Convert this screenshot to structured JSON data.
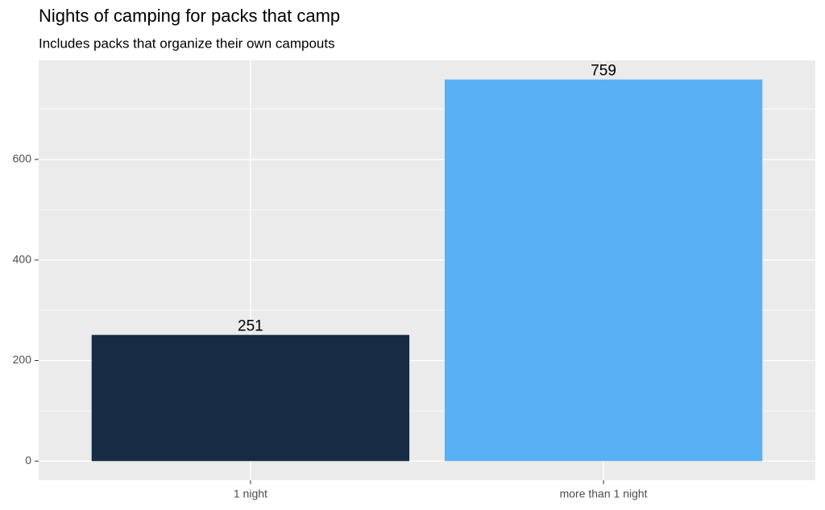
{
  "chart_data": {
    "type": "bar",
    "title": "Nights of camping for packs that camp",
    "subtitle": "Includes packs that organize their own campouts",
    "categories": [
      "1 night",
      "more than 1 night"
    ],
    "values": [
      251,
      759
    ],
    "colors": [
      "#172b45",
      "#5ab0f5"
    ],
    "ylim": [
      -37.95,
      796.95
    ],
    "yticks": [
      0,
      200,
      400,
      600
    ],
    "y_minor_ticks": [
      100,
      300,
      500,
      700
    ],
    "grid": true
  }
}
